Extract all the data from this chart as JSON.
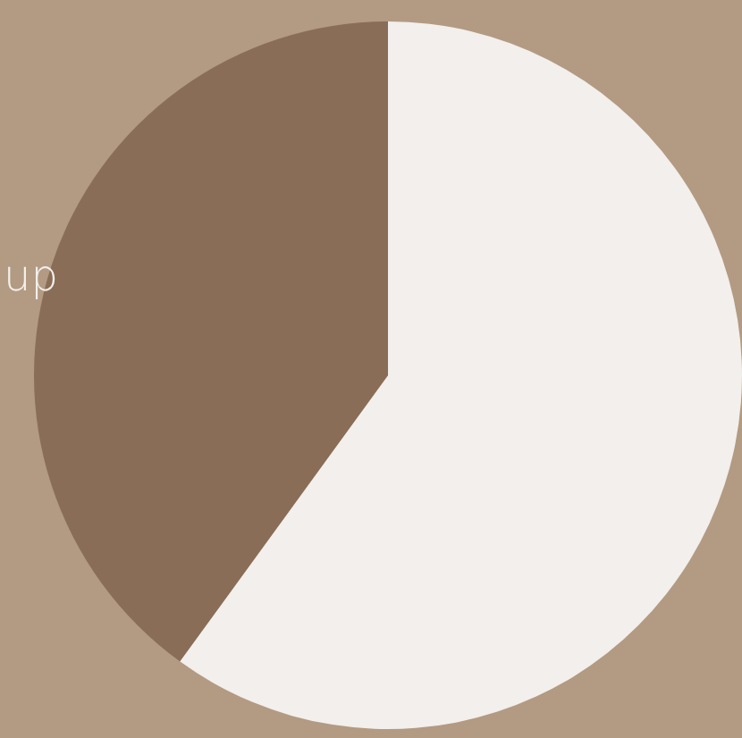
{
  "chart_data": {
    "type": "pie",
    "categories": [
      null,
      "up"
    ],
    "values": [
      60,
      40
    ],
    "colors": [
      "#f2efec",
      "#8a6d56"
    ],
    "legend": false
  }
}
